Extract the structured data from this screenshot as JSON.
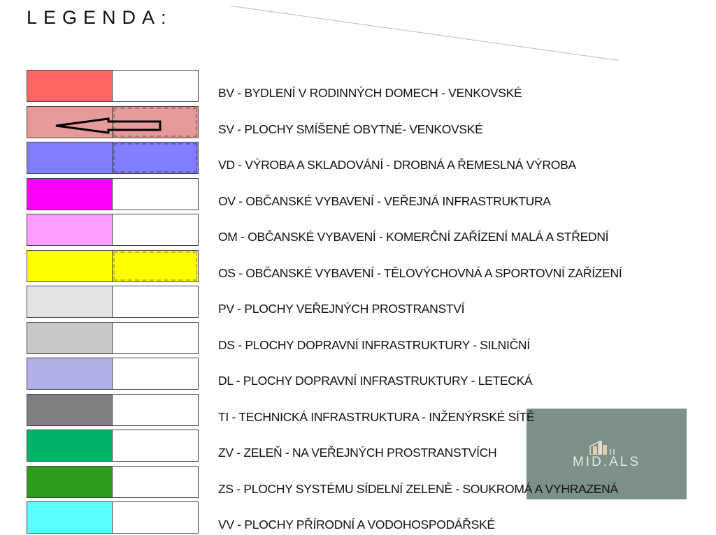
{
  "title": "LEGENDA:",
  "watermark": {
    "text": "MID.ALS",
    "color": "#6e847a"
  },
  "items": [
    {
      "code": "BV",
      "label": "BV - BYDLENÍ V RODINNÝCH DOMECH - VENKOVSKÉ",
      "color": "#ff6666",
      "pattern": "none"
    },
    {
      "code": "SV",
      "label": "SV - PLOCHY SMÍŠENÉ OBYTNÉ- VENKOVSKÉ",
      "color": "#e69a9a",
      "pattern": "grid",
      "arrow": true
    },
    {
      "code": "VD",
      "label": "VD - VÝROBA A SKLADOVÁNÍ - DROBNÁ A ŘEMESLNÁ VÝROBA",
      "color": "#7f7fff",
      "pattern": "grid"
    },
    {
      "code": "OV",
      "label": "OV - OBČANSKÉ VYBAVENÍ - VEŘEJNÁ INFRASTRUKTURA",
      "color": "#ff00ff",
      "pattern": "none"
    },
    {
      "code": "OM",
      "label": "OM - OBČANSKÉ VYBAVENÍ - KOMERČNÍ ZAŘÍZENÍ MALÁ A STŘEDNÍ",
      "color": "#ff9eff",
      "pattern": "none"
    },
    {
      "code": "OS",
      "label": "OS - OBČANSKÉ VYBAVENÍ - TĚLOVÝCHOVNÁ A SPORTOVNÍ ZAŘÍZENÍ",
      "color": "#ffff00",
      "pattern": "grid"
    },
    {
      "code": "PV",
      "label": "PV - PLOCHY VEŘEJNÝCH PROSTRANSTVÍ",
      "color": "#e3e3e3",
      "pattern": "none"
    },
    {
      "code": "DS",
      "label": "DS - PLOCHY DOPRAVNÍ INFRASTRUKTURY - SILNIČNÍ",
      "color": "#c8c8c8",
      "pattern": "none"
    },
    {
      "code": "DL",
      "label": "DL - PLOCHY DOPRAVNÍ INFRASTRUKTURY - LETECKÁ",
      "color": "#b0b0e8",
      "pattern": "none"
    },
    {
      "code": "TI",
      "label": "TI - TECHNICKÁ INFRASTRUKTURA - INŽENÝRSKÉ SÍTĚ",
      "color": "#7f7f7f",
      "pattern": "none"
    },
    {
      "code": "ZV",
      "label": "ZV - ZELEŇ - NA VEŘEJNÝCH PROSTRANSTVÍCH",
      "color": "#00b36b",
      "pattern": "none"
    },
    {
      "code": "ZS",
      "label": "ZS - PLOCHY SYSTÉMU SÍDELNÍ ZELENĚ - SOUKROMÁ A VYHRAZENÁ",
      "color": "#2e9b1a",
      "pattern": "none"
    },
    {
      "code": "VV",
      "label": "VV - PLOCHY PŘÍRODNÍ A VODOHOSPODÁŘSKÉ",
      "color": "#5cffff",
      "pattern": "none"
    }
  ]
}
